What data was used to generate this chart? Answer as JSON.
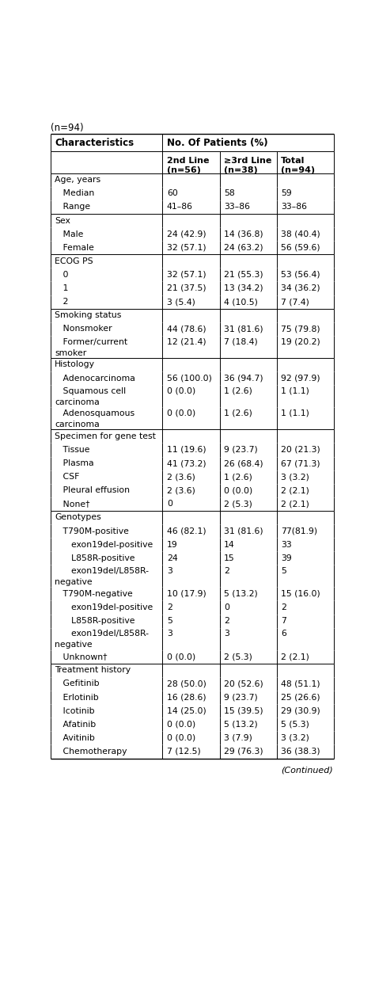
{
  "title_line": "(n=94)",
  "col_header1": "Characteristics",
  "col_header2": "No. Of Patients (%)",
  "subheaders": [
    "2nd Line\n(n=56)",
    "≥3rd Line\n(n=38)",
    "Total\n(n=94)"
  ],
  "rows": [
    {
      "label": "Age, years",
      "indent": 0,
      "vals": [
        "",
        "",
        ""
      ],
      "section_break_above": false
    },
    {
      "label": "   Median",
      "indent": 0,
      "vals": [
        "60",
        "58",
        "59"
      ],
      "section_break_above": false
    },
    {
      "label": "   Range",
      "indent": 0,
      "vals": [
        "41–86",
        "33–86",
        "33–86"
      ],
      "section_break_above": false
    },
    {
      "label": "Sex",
      "indent": 0,
      "vals": [
        "",
        "",
        ""
      ],
      "section_break_above": true
    },
    {
      "label": "   Male",
      "indent": 0,
      "vals": [
        "24 (42.9)",
        "14 (36.8)",
        "38 (40.4)"
      ],
      "section_break_above": false
    },
    {
      "label": "   Female",
      "indent": 0,
      "vals": [
        "32 (57.1)",
        "24 (63.2)",
        "56 (59.6)"
      ],
      "section_break_above": false
    },
    {
      "label": "ECOG PS",
      "indent": 0,
      "vals": [
        "",
        "",
        ""
      ],
      "section_break_above": true
    },
    {
      "label": "   0",
      "indent": 0,
      "vals": [
        "32 (57.1)",
        "21 (55.3)",
        "53 (56.4)"
      ],
      "section_break_above": false
    },
    {
      "label": "   1",
      "indent": 0,
      "vals": [
        "21 (37.5)",
        "13 (34.2)",
        "34 (36.2)"
      ],
      "section_break_above": false
    },
    {
      "label": "   2",
      "indent": 0,
      "vals": [
        "3 (5.4)",
        "4 (10.5)",
        "7 (7.4)"
      ],
      "section_break_above": false
    },
    {
      "label": "Smoking status",
      "indent": 0,
      "vals": [
        "",
        "",
        ""
      ],
      "section_break_above": true
    },
    {
      "label": "   Nonsmoker",
      "indent": 0,
      "vals": [
        "44 (78.6)",
        "31 (81.6)",
        "75 (79.8)"
      ],
      "section_break_above": false
    },
    {
      "label": "   Former/current\nsmoker",
      "indent": 0,
      "vals": [
        "12 (21.4)",
        "7 (18.4)",
        "19 (20.2)"
      ],
      "section_break_above": false
    },
    {
      "label": "Histology",
      "indent": 0,
      "vals": [
        "",
        "",
        ""
      ],
      "section_break_above": true
    },
    {
      "label": "   Adenocarcinoma",
      "indent": 0,
      "vals": [
        "56 (100.0)",
        "36 (94.7)",
        "92 (97.9)"
      ],
      "section_break_above": false
    },
    {
      "label": "   Squamous cell\ncarcinoma",
      "indent": 0,
      "vals": [
        "0 (0.0)",
        "1 (2.6)",
        "1 (1.1)"
      ],
      "section_break_above": false
    },
    {
      "label": "   Adenosquamous\ncarcinoma",
      "indent": 0,
      "vals": [
        "0 (0.0)",
        "1 (2.6)",
        "1 (1.1)"
      ],
      "section_break_above": false
    },
    {
      "label": "Specimen for gene test",
      "indent": 0,
      "vals": [
        "",
        "",
        ""
      ],
      "section_break_above": true
    },
    {
      "label": "   Tissue",
      "indent": 0,
      "vals": [
        "11 (19.6)",
        "9 (23.7)",
        "20 (21.3)"
      ],
      "section_break_above": false
    },
    {
      "label": "   Plasma",
      "indent": 0,
      "vals": [
        "41 (73.2)",
        "26 (68.4)",
        "67 (71.3)"
      ],
      "section_break_above": false
    },
    {
      "label": "   CSF",
      "indent": 0,
      "vals": [
        "2 (3.6)",
        "1 (2.6)",
        "3 (3.2)"
      ],
      "section_break_above": false
    },
    {
      "label": "   Pleural effusion",
      "indent": 0,
      "vals": [
        "2 (3.6)",
        "0 (0.0)",
        "2 (2.1)"
      ],
      "section_break_above": false
    },
    {
      "label": "   None†",
      "indent": 0,
      "vals": [
        "0",
        "2 (5.3)",
        "2 (2.1)"
      ],
      "section_break_above": false
    },
    {
      "label": "Genotypes",
      "indent": 0,
      "vals": [
        "",
        "",
        ""
      ],
      "section_break_above": true
    },
    {
      "label": "   T790M-positive",
      "indent": 0,
      "vals": [
        "46 (82.1)",
        "31 (81.6)",
        "77(81.9)"
      ],
      "section_break_above": false
    },
    {
      "label": "      exon19del-positive",
      "indent": 0,
      "vals": [
        "19",
        "14",
        "33"
      ],
      "section_break_above": false
    },
    {
      "label": "      L858R-positive",
      "indent": 0,
      "vals": [
        "24",
        "15",
        "39"
      ],
      "section_break_above": false
    },
    {
      "label": "      exon19del/L858R-\nnegative",
      "indent": 0,
      "vals": [
        "3",
        "2",
        "5"
      ],
      "section_break_above": false
    },
    {
      "label": "   T790M-negative",
      "indent": 0,
      "vals": [
        "10 (17.9)",
        "5 (13.2)",
        "15 (16.0)"
      ],
      "section_break_above": false
    },
    {
      "label": "      exon19del-positive",
      "indent": 0,
      "vals": [
        "2",
        "0",
        "2"
      ],
      "section_break_above": false
    },
    {
      "label": "      L858R-positive",
      "indent": 0,
      "vals": [
        "5",
        "2",
        "7"
      ],
      "section_break_above": false
    },
    {
      "label": "      exon19del/L858R-\nnegative",
      "indent": 0,
      "vals": [
        "3",
        "3",
        "6"
      ],
      "section_break_above": false
    },
    {
      "label": "   Unknown†",
      "indent": 0,
      "vals": [
        "0 (0.0)",
        "2 (5.3)",
        "2 (2.1)"
      ],
      "section_break_above": false
    },
    {
      "label": "Treatment history",
      "indent": 0,
      "vals": [
        "",
        "",
        ""
      ],
      "section_break_above": true
    },
    {
      "label": "   Gefitinib",
      "indent": 0,
      "vals": [
        "28 (50.0)",
        "20 (52.6)",
        "48 (51.1)"
      ],
      "section_break_above": false
    },
    {
      "label": "   Erlotinib",
      "indent": 0,
      "vals": [
        "16 (28.6)",
        "9 (23.7)",
        "25 (26.6)"
      ],
      "section_break_above": false
    },
    {
      "label": "   Icotinib",
      "indent": 0,
      "vals": [
        "14 (25.0)",
        "15 (39.5)",
        "29 (30.9)"
      ],
      "section_break_above": false
    },
    {
      "label": "   Afatinib",
      "indent": 0,
      "vals": [
        "0 (0.0)",
        "5 (13.2)",
        "5 (5.3)"
      ],
      "section_break_above": false
    },
    {
      "label": "   Avitinib",
      "indent": 0,
      "vals": [
        "0 (0.0)",
        "3 (7.9)",
        "3 (3.2)"
      ],
      "section_break_above": false
    },
    {
      "label": "   Chemotherapy",
      "indent": 0,
      "vals": [
        "7 (12.5)",
        "29 (76.3)",
        "36 (38.3)"
      ],
      "section_break_above": false
    }
  ],
  "footer": "(Continued)",
  "bg_color": "#ffffff",
  "line_color": "#000000",
  "text_color": "#000000"
}
